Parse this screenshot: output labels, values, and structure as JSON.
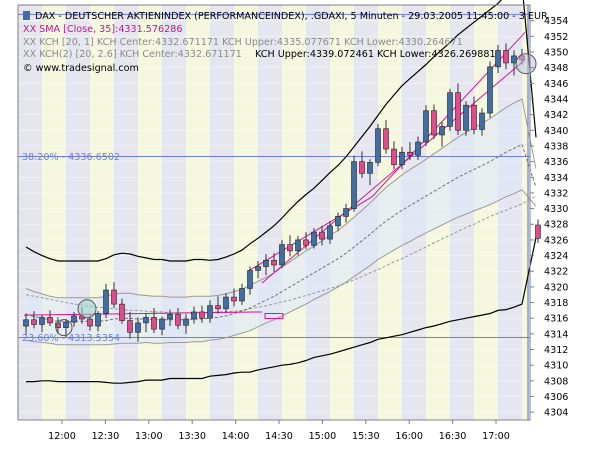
{
  "window": {
    "title": "DAX - DEUTSCHER AKTIENINDEX (PERFORMANCEINDEX), .GDAXI, 5 Minuten - 29.03.2005 11:45:00 - 3 EUR"
  },
  "legend": {
    "sma": "XX SMA [Close, 35]:4331.576286",
    "kch1": "XX KCH [20, 1] KCH Center:4332.671171 KCH Upper:4335.077671 KCH Lower:4330.264671",
    "kch2": "XX KCH(2) [20, 2.6] KCH Center:4332.671171",
    "kch2_bands": "KCH Upper:4339.072461 KCH Lower:4326.269881",
    "watermark": "© www.tradesignal.com"
  },
  "chart_data": {
    "type": "candlestick",
    "title": "DAX - DEUTSCHER AKTIENINDEX (PERFORMANCEINDEX), .GDAXI, 5 Minuten - 29.03.2005 11:45:00 - 3 EUR",
    "y_axis": {
      "min": 4303,
      "max": 4356,
      "ticks": [
        4304,
        4306,
        4308,
        4310,
        4312,
        4314,
        4316,
        4318,
        4320,
        4322,
        4324,
        4326,
        4328,
        4330,
        4332,
        4334,
        4336,
        4338,
        4340,
        4342,
        4344,
        4346,
        4348,
        4350,
        4352,
        4354
      ],
      "position": "right"
    },
    "x_axis": {
      "labels": [
        "12:00",
        "12:30",
        "13:00",
        "13:30",
        "14:00",
        "14:30",
        "15:00",
        "15:30",
        "16:00",
        "16:30",
        "17:00"
      ]
    },
    "fib_levels": [
      {
        "label": "38.20% - 4336.6502",
        "value": 4336.6502
      },
      {
        "label": "23.60% - 4313.5354",
        "value": 4313.5354
      }
    ],
    "ref_lines": [
      4354.8,
      4336.6502,
      4313.5354
    ],
    "ohlc": [
      [
        4315.0,
        4316.6,
        4313.9,
        4315.8
      ],
      [
        4315.8,
        4316.9,
        4314.7,
        4315.2
      ],
      [
        4315.2,
        4316.4,
        4314.2,
        4316.1
      ],
      [
        4316.1,
        4317.0,
        4315.0,
        4315.4
      ],
      [
        4315.4,
        4316.1,
        4314.0,
        4314.8
      ],
      [
        4314.8,
        4315.9,
        4313.6,
        4315.5
      ],
      [
        4315.5,
        4316.8,
        4314.9,
        4316.3
      ],
      [
        4316.3,
        4317.4,
        4315.3,
        4315.9
      ],
      [
        4315.9,
        4316.5,
        4314.4,
        4315.0
      ],
      [
        4315.0,
        4316.9,
        4314.3,
        4316.6
      ],
      [
        4316.6,
        4320.4,
        4316.0,
        4319.6
      ],
      [
        4319.6,
        4320.6,
        4317.3,
        4317.8
      ],
      [
        4317.8,
        4318.5,
        4315.3,
        4315.7
      ],
      [
        4315.7,
        4316.8,
        4313.4,
        4314.2
      ],
      [
        4314.2,
        4316.1,
        4313.0,
        4315.4
      ],
      [
        4315.4,
        4316.6,
        4314.2,
        4316.1
      ],
      [
        4316.1,
        4317.3,
        4314.1,
        4314.6
      ],
      [
        4314.6,
        4316.2,
        4313.8,
        4315.9
      ],
      [
        4315.9,
        4317.1,
        4315.0,
        4316.5
      ],
      [
        4316.5,
        4317.3,
        4314.6,
        4315.1
      ],
      [
        4315.1,
        4316.5,
        4314.0,
        4315.9
      ],
      [
        4315.9,
        4317.5,
        4315.3,
        4316.8
      ],
      [
        4316.8,
        4317.6,
        4315.4,
        4316.0
      ],
      [
        4316.0,
        4318.3,
        4315.4,
        4317.6
      ],
      [
        4317.6,
        4318.8,
        4316.6,
        4317.2
      ],
      [
        4317.2,
        4319.2,
        4316.7,
        4318.7
      ],
      [
        4318.7,
        4319.8,
        4317.5,
        4318.2
      ],
      [
        4318.2,
        4320.4,
        4317.7,
        4319.8
      ],
      [
        4319.8,
        4322.6,
        4319.0,
        4322.1
      ],
      [
        4322.1,
        4323.3,
        4321.1,
        4322.6
      ],
      [
        4322.6,
        4324.2,
        4321.5,
        4323.4
      ],
      [
        4323.4,
        4324.3,
        4321.9,
        4322.8
      ],
      [
        4322.8,
        4326.0,
        4322.4,
        4325.4
      ],
      [
        4325.4,
        4326.6,
        4323.9,
        4324.6
      ],
      [
        4324.6,
        4326.5,
        4324.0,
        4326.0
      ],
      [
        4326.0,
        4327.0,
        4324.8,
        4325.3
      ],
      [
        4325.3,
        4327.5,
        4324.9,
        4327.0
      ],
      [
        4327.0,
        4327.8,
        4325.3,
        4326.1
      ],
      [
        4326.1,
        4328.4,
        4325.5,
        4327.8
      ],
      [
        4327.8,
        4329.5,
        4327.1,
        4329.0
      ],
      [
        4329.0,
        4330.6,
        4328.2,
        4330.0
      ],
      [
        4330.0,
        4336.8,
        4329.6,
        4336.0
      ],
      [
        4336.0,
        4337.3,
        4333.9,
        4334.5
      ],
      [
        4334.5,
        4336.3,
        4333.0,
        4335.9
      ],
      [
        4335.9,
        4340.8,
        4335.4,
        4340.2
      ],
      [
        4340.2,
        4341.3,
        4337.0,
        4337.6
      ],
      [
        4337.6,
        4338.6,
        4335.0,
        4335.6
      ],
      [
        4335.6,
        4337.9,
        4335.0,
        4337.2
      ],
      [
        4337.2,
        4338.5,
        4336.2,
        4336.8
      ],
      [
        4336.8,
        4339.2,
        4336.2,
        4338.5
      ],
      [
        4338.5,
        4343.2,
        4338.0,
        4342.5
      ],
      [
        4342.5,
        4343.3,
        4338.9,
        4339.4
      ],
      [
        4339.4,
        4341.1,
        4337.9,
        4340.5
      ],
      [
        4340.5,
        4345.3,
        4339.9,
        4344.8
      ],
      [
        4344.8,
        4346.0,
        4339.4,
        4340.0
      ],
      [
        4340.0,
        4343.7,
        4339.3,
        4343.2
      ],
      [
        4343.2,
        4344.3,
        4339.5,
        4340.1
      ],
      [
        4340.1,
        4342.8,
        4339.3,
        4342.2
      ],
      [
        4342.2,
        4348.8,
        4341.6,
        4348.1
      ],
      [
        4348.1,
        4350.9,
        4347.3,
        4350.2
      ],
      [
        4350.2,
        4351.1,
        4347.8,
        4348.6
      ],
      [
        4348.6,
        4350.2,
        4347.0,
        4349.5
      ],
      [
        4349.5,
        4350.4,
        4348.4,
        4349.0
      ],
      [
        4327.9,
        4328.6,
        4325.6,
        4326.2
      ]
    ],
    "series": [
      {
        "name": "SMA [Close, 35]",
        "values": [
          4319.0,
          4318.8,
          4318.6,
          4318.4,
          4318.2,
          4318.0,
          4317.8,
          4317.7,
          4317.5,
          4317.4,
          4317.3,
          4317.2,
          4317.1,
          4317.0,
          4317.0,
          4316.9,
          4316.8,
          4316.8,
          4316.7,
          4316.7,
          4316.7,
          4316.7,
          4316.7,
          4316.7,
          4316.8,
          4316.8,
          4316.9,
          4317.0,
          4317.2,
          4317.4,
          4317.6,
          4317.8,
          4318.1,
          4318.3,
          4318.6,
          4318.9,
          4319.2,
          4319.5,
          4319.8,
          4320.1,
          4320.5,
          4320.9,
          4321.3,
          4321.8,
          4322.2,
          4322.7,
          4323.2,
          4323.6,
          4324.1,
          4324.6,
          4325.1,
          4325.6,
          4326.1,
          4326.6,
          4327.1,
          4327.6,
          4328.0,
          4328.5,
          4329.0,
          4329.4,
          4329.8,
          4330.2,
          4330.6,
          4331.6
        ]
      },
      {
        "name": "KCH Center",
        "values": [
          4316.5,
          4316.2,
          4316.0,
          4315.8,
          4315.6,
          4315.6,
          4315.6,
          4315.6,
          4315.6,
          4315.6,
          4315.7,
          4315.9,
          4316.0,
          4316.0,
          4315.9,
          4315.9,
          4315.8,
          4315.8,
          4315.8,
          4315.8,
          4315.8,
          4315.9,
          4315.9,
          4316.0,
          4316.1,
          4316.3,
          4316.6,
          4316.9,
          4317.3,
          4317.8,
          4318.3,
          4318.8,
          4319.4,
          4320.0,
          4320.6,
          4321.2,
          4321.8,
          4322.4,
          4323.0,
          4323.6,
          4324.3,
          4325.1,
          4325.9,
          4326.7,
          4327.6,
          4328.4,
          4329.1,
          4329.8,
          4330.4,
          4331.0,
          4331.6,
          4332.2,
          4332.8,
          4333.4,
          4334.0,
          4334.5,
          4335.0,
          4335.5,
          4336.0,
          4336.6,
          4337.2,
          4337.7,
          4338.2,
          4332.7
        ]
      },
      {
        "name": "KCH Upper (20, 1)",
        "values": [
          4319.8,
          4319.4,
          4319.1,
          4318.8,
          4318.6,
          4318.6,
          4318.6,
          4318.6,
          4318.6,
          4318.6,
          4318.8,
          4319.1,
          4319.2,
          4319.2,
          4319.0,
          4318.9,
          4318.8,
          4318.8,
          4318.7,
          4318.7,
          4318.7,
          4318.8,
          4318.8,
          4318.8,
          4318.9,
          4319.1,
          4319.4,
          4319.7,
          4320.2,
          4320.7,
          4321.2,
          4321.8,
          4322.5,
          4323.2,
          4323.9,
          4324.6,
          4325.2,
          4325.9,
          4326.6,
          4327.2,
          4328.0,
          4328.9,
          4329.8,
          4330.7,
          4331.7,
          4332.7,
          4333.5,
          4334.3,
          4335.0,
          4335.6,
          4336.3,
          4337.0,
          4337.7,
          4338.4,
          4339.1,
          4339.7,
          4340.3,
          4340.9,
          4341.5,
          4342.2,
          4342.9,
          4343.5,
          4344.0,
          4335.1
        ]
      },
      {
        "name": "KCH Lower (20, 1)",
        "values": [
          4313.2,
          4313.0,
          4312.9,
          4312.8,
          4312.6,
          4312.6,
          4312.6,
          4312.6,
          4312.6,
          4312.6,
          4312.6,
          4312.7,
          4312.8,
          4312.8,
          4312.8,
          4312.9,
          4312.8,
          4312.8,
          4312.9,
          4312.9,
          4312.9,
          4313.0,
          4313.0,
          4313.2,
          4313.3,
          4313.5,
          4313.8,
          4314.1,
          4314.4,
          4314.9,
          4315.4,
          4315.8,
          4316.3,
          4316.8,
          4317.3,
          4317.8,
          4318.4,
          4318.9,
          4319.4,
          4320.0,
          4320.6,
          4321.3,
          4322.0,
          4322.7,
          4323.5,
          4324.1,
          4324.7,
          4325.3,
          4325.8,
          4326.4,
          4326.9,
          4327.4,
          4327.9,
          4328.4,
          4328.9,
          4329.3,
          4329.7,
          4330.1,
          4330.5,
          4331.0,
          4331.5,
          4331.9,
          4332.4,
          4330.3
        ]
      },
      {
        "name": "KCH Upper (20, 2.6)",
        "values": [
          4325.1,
          4324.5,
          4324.0,
          4323.6,
          4323.3,
          4323.3,
          4323.3,
          4323.3,
          4323.3,
          4323.3,
          4323.6,
          4324.1,
          4324.3,
          4324.2,
          4323.9,
          4323.7,
          4323.5,
          4323.5,
          4323.3,
          4323.3,
          4323.3,
          4323.5,
          4323.5,
          4323.4,
          4323.5,
          4323.8,
          4324.2,
          4324.7,
          4325.5,
          4326.2,
          4327.0,
          4327.8,
          4328.8,
          4329.9,
          4330.9,
          4331.8,
          4332.6,
          4333.6,
          4334.6,
          4335.5,
          4336.6,
          4337.9,
          4339.2,
          4340.5,
          4341.9,
          4343.3,
          4344.5,
          4345.7,
          4346.6,
          4347.5,
          4348.4,
          4349.4,
          4350.3,
          4351.2,
          4352.2,
          4353.0,
          4353.8,
          4354.6,
          4355.4,
          4356.2,
          4357.3,
          4358.0,
          4358.6,
          4339.1
        ]
      },
      {
        "name": "KCH Lower (20, 2.6)",
        "values": [
          4307.9,
          4307.9,
          4308.0,
          4308.0,
          4307.9,
          4307.9,
          4307.9,
          4307.9,
          4307.9,
          4307.9,
          4307.8,
          4307.7,
          4307.7,
          4307.8,
          4307.9,
          4308.1,
          4308.1,
          4308.1,
          4308.3,
          4308.3,
          4308.3,
          4308.3,
          4308.3,
          4308.6,
          4308.7,
          4308.8,
          4309.0,
          4309.1,
          4309.1,
          4309.4,
          4309.6,
          4309.8,
          4310.0,
          4310.1,
          4310.3,
          4310.6,
          4311.0,
          4311.2,
          4311.4,
          4311.7,
          4312.0,
          4312.3,
          4312.6,
          4312.9,
          4313.3,
          4313.5,
          4313.7,
          4313.9,
          4314.2,
          4314.5,
          4314.8,
          4315.0,
          4315.3,
          4315.6,
          4315.8,
          4316.0,
          4316.2,
          4316.4,
          4316.6,
          4317.0,
          4317.1,
          4317.4,
          4317.8,
          4326.3
        ]
      }
    ],
    "grid": true,
    "legend_position": "top-left"
  }
}
